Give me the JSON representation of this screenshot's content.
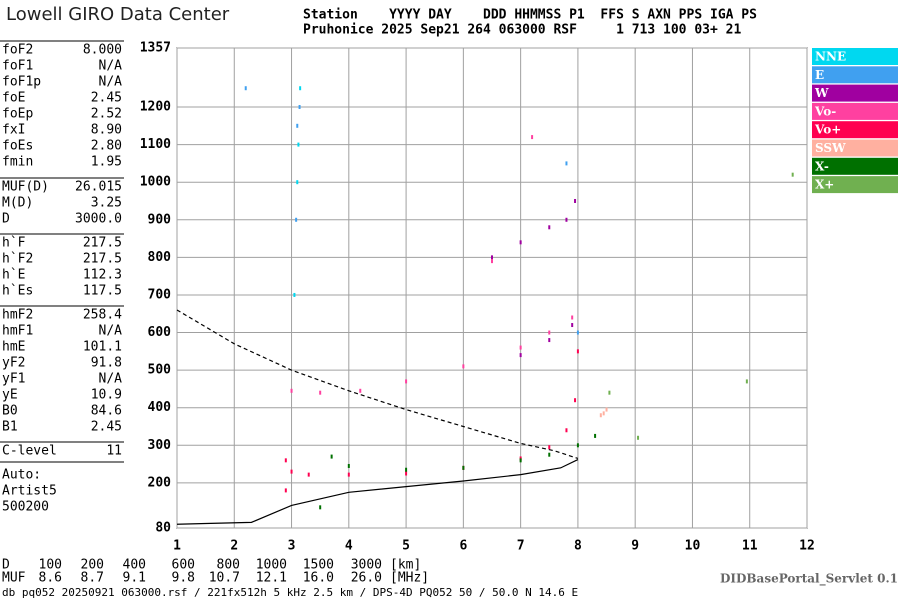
{
  "header": {
    "logo": "Lowell GIRO Data Center",
    "line1": "Station    YYYY DAY    DDD HHMMSS P1  FFS S AXN PPS IGA PS",
    "line2": "Pruhonice 2025 Sep21 264 063000 RSF     1 713 100 03+ 21"
  },
  "params": [
    [
      [
        "foF2",
        "8.000"
      ],
      [
        "foF1",
        "N/A"
      ],
      [
        "foF1p",
        "N/A"
      ],
      [
        "foE",
        "2.45"
      ],
      [
        "foEp",
        "2.52"
      ],
      [
        "fxI",
        "8.90"
      ],
      [
        "foEs",
        "2.80"
      ],
      [
        "fmin",
        "1.95"
      ]
    ],
    [
      [
        "MUF(D)",
        "26.015"
      ],
      [
        "M(D)",
        "3.25"
      ],
      [
        "D",
        "3000.0"
      ]
    ],
    [
      [
        "h`F",
        "217.5"
      ],
      [
        "h`F2",
        "217.5"
      ],
      [
        "h`E",
        "112.3"
      ],
      [
        "h`Es",
        "117.5"
      ]
    ],
    [
      [
        "hmF2",
        "258.4"
      ],
      [
        "hmF1",
        "N/A"
      ],
      [
        "hmE",
        "101.1"
      ],
      [
        "yF2",
        "91.8"
      ],
      [
        "yF1",
        "N/A"
      ],
      [
        "yE",
        "10.9"
      ],
      [
        "B0",
        "84.6"
      ],
      [
        "B1",
        "2.45"
      ]
    ],
    [
      [
        "C-level",
        "11"
      ]
    ]
  ],
  "notes": [
    "Auto:",
    "Artist5",
    "500200"
  ],
  "muf_table": {
    "rows": [
      [
        "D",
        "100",
        "200",
        "400",
        "600",
        "800",
        "1000",
        "1500",
        "3000",
        "[km]"
      ],
      [
        "MUF",
        "8.6",
        "8.7",
        "9.1",
        "9.8",
        "10.7",
        "12.1",
        "16.0",
        "26.0",
        "[MHz]"
      ]
    ]
  },
  "servlet": "DIDBasePortal_Servlet 0.1",
  "footer": "db pq052 20250921 063000.rsf / 221fx512h 5 kHz 2.5 km / DPS-4D PQ052 50 / 50.0 N 14.6 E",
  "chart_data": {
    "type": "scatter",
    "xlim": [
      1,
      12
    ],
    "xticks": [
      1,
      2,
      3,
      4,
      5,
      6,
      7,
      8,
      9,
      10,
      11,
      12
    ],
    "ylim": [
      80,
      1357
    ],
    "yticks": [
      80,
      200,
      300,
      400,
      500,
      600,
      700,
      800,
      900,
      1000,
      1100,
      1200,
      1357
    ],
    "grid": true,
    "series": [
      {
        "name": "NNE",
        "color": "#00d8f0",
        "x": [
          3.1,
          3.12,
          3.15,
          3.05
        ],
        "values": [
          1000,
          1100,
          1250,
          700
        ]
      },
      {
        "name": "E",
        "color": "#40a0f0",
        "x": [
          3.08,
          3.1,
          3.14,
          2.2,
          7.8,
          8.0
        ],
        "values": [
          900,
          1150,
          1200,
          1250,
          1050,
          600
        ]
      },
      {
        "name": "W",
        "color": "#a000a0",
        "x": [
          6.5,
          7.0,
          7.5,
          7.8,
          7.95,
          7.0,
          7.5,
          7.9
        ],
        "values": [
          800,
          840,
          880,
          900,
          950,
          540,
          580,
          620
        ]
      },
      {
        "name": "Vo-",
        "color": "#ff40a0",
        "x": [
          3.0,
          3.5,
          4.2,
          5.0,
          6.0,
          7.0,
          7.5,
          7.9,
          6.5,
          7.2
        ],
        "values": [
          445,
          440,
          445,
          470,
          510,
          560,
          600,
          640,
          790,
          1120
        ]
      },
      {
        "name": "Vo+",
        "color": "#ff0050",
        "x": [
          2.9,
          3.0,
          3.3,
          4.0,
          5.0,
          6.0,
          7.0,
          7.5,
          7.8,
          7.95,
          8.0,
          2.9
        ],
        "values": [
          260,
          230,
          222,
          222,
          225,
          240,
          265,
          295,
          340,
          420,
          550,
          180
        ]
      },
      {
        "name": "SSW",
        "color": "#ffb0a0",
        "x": [
          8.4,
          8.5,
          8.45
        ],
        "values": [
          380,
          395,
          385
        ]
      },
      {
        "name": "X-",
        "color": "#007000",
        "x": [
          3.7,
          4.0,
          5.0,
          6.0,
          7.0,
          7.5,
          8.0,
          8.3,
          3.5
        ],
        "values": [
          270,
          245,
          235,
          240,
          260,
          275,
          300,
          325,
          135
        ]
      },
      {
        "name": "X+",
        "color": "#70b050",
        "x": [
          8.55,
          9.05,
          11.75,
          10.95
        ],
        "values": [
          440,
          320,
          1020,
          470
        ]
      }
    ],
    "profiles": [
      {
        "style": "dashed",
        "x": [
          1,
          2,
          3,
          4,
          5,
          6,
          7,
          7.6,
          8
        ],
        "values": [
          660,
          570,
          500,
          445,
          395,
          350,
          305,
          285,
          265
        ]
      },
      {
        "style": "solid",
        "x": [
          1,
          1.5,
          2.3,
          3,
          4,
          5,
          6,
          7,
          7.7,
          8
        ],
        "values": [
          90,
          92,
          95,
          140,
          175,
          190,
          205,
          222,
          240,
          262
        ]
      }
    ]
  }
}
